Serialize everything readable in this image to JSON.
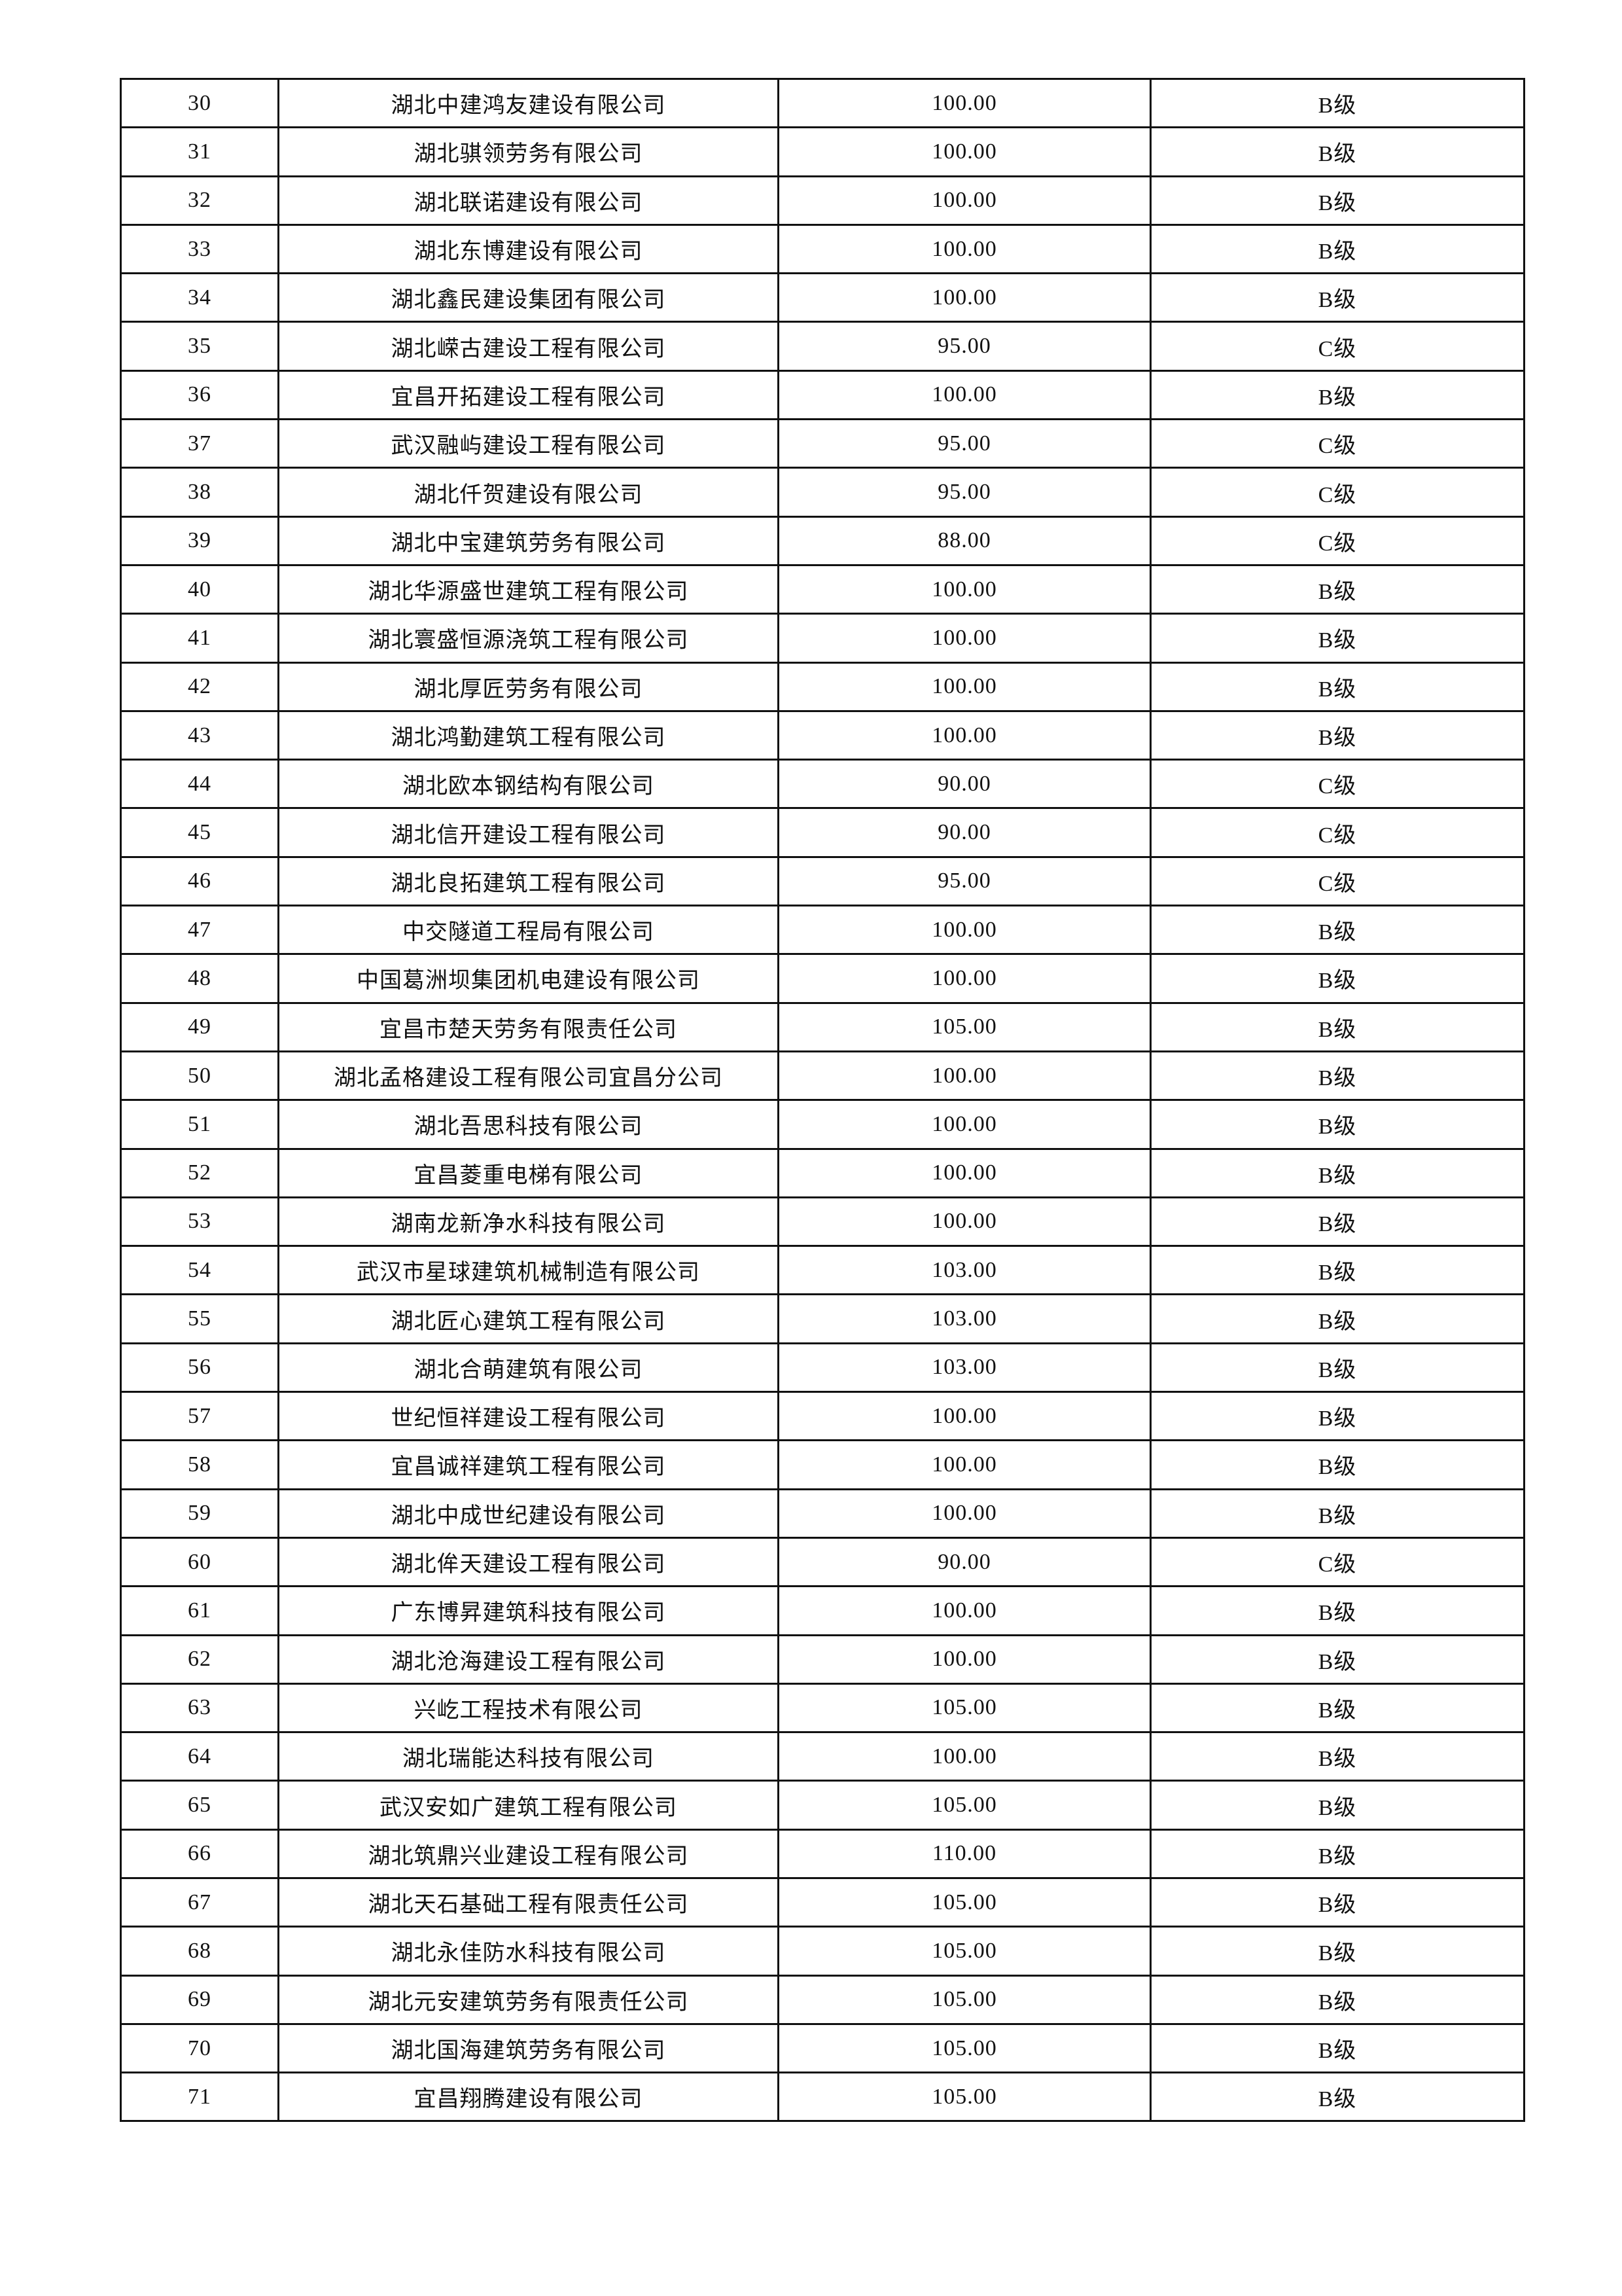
{
  "rows": [
    {
      "no": "30",
      "name": "湖北中建鸿友建设有限公司",
      "score": "100.00",
      "grade": "B级"
    },
    {
      "no": "31",
      "name": "湖北骐领劳务有限公司",
      "score": "100.00",
      "grade": "B级"
    },
    {
      "no": "32",
      "name": "湖北联诺建设有限公司",
      "score": "100.00",
      "grade": "B级"
    },
    {
      "no": "33",
      "name": "湖北东博建设有限公司",
      "score": "100.00",
      "grade": "B级"
    },
    {
      "no": "34",
      "name": "湖北鑫民建设集团有限公司",
      "score": "100.00",
      "grade": "B级"
    },
    {
      "no": "35",
      "name": "湖北嵘古建设工程有限公司",
      "score": "95.00",
      "grade": "C级"
    },
    {
      "no": "36",
      "name": "宜昌开拓建设工程有限公司",
      "score": "100.00",
      "grade": "B级"
    },
    {
      "no": "37",
      "name": "武汉融屿建设工程有限公司",
      "score": "95.00",
      "grade": "C级"
    },
    {
      "no": "38",
      "name": "湖北仟贺建设有限公司",
      "score": "95.00",
      "grade": "C级"
    },
    {
      "no": "39",
      "name": "湖北中宝建筑劳务有限公司",
      "score": "88.00",
      "grade": "C级"
    },
    {
      "no": "40",
      "name": "湖北华源盛世建筑工程有限公司",
      "score": "100.00",
      "grade": "B级"
    },
    {
      "no": "41",
      "name": "湖北寰盛恒源浇筑工程有限公司",
      "score": "100.00",
      "grade": "B级"
    },
    {
      "no": "42",
      "name": "湖北厚匠劳务有限公司",
      "score": "100.00",
      "grade": "B级"
    },
    {
      "no": "43",
      "name": "湖北鸿勤建筑工程有限公司",
      "score": "100.00",
      "grade": "B级"
    },
    {
      "no": "44",
      "name": "湖北欧本钢结构有限公司",
      "score": "90.00",
      "grade": "C级"
    },
    {
      "no": "45",
      "name": "湖北信开建设工程有限公司",
      "score": "90.00",
      "grade": "C级"
    },
    {
      "no": "46",
      "name": "湖北良拓建筑工程有限公司",
      "score": "95.00",
      "grade": "C级"
    },
    {
      "no": "47",
      "name": "中交隧道工程局有限公司",
      "score": "100.00",
      "grade": "B级"
    },
    {
      "no": "48",
      "name": "中国葛洲坝集团机电建设有限公司",
      "score": "100.00",
      "grade": "B级"
    },
    {
      "no": "49",
      "name": "宜昌市楚天劳务有限责任公司",
      "score": "105.00",
      "grade": "B级"
    },
    {
      "no": "50",
      "name": "湖北孟格建设工程有限公司宜昌分公司",
      "score": "100.00",
      "grade": "B级"
    },
    {
      "no": "51",
      "name": "湖北吾思科技有限公司",
      "score": "100.00",
      "grade": "B级"
    },
    {
      "no": "52",
      "name": "宜昌菱重电梯有限公司",
      "score": "100.00",
      "grade": "B级"
    },
    {
      "no": "53",
      "name": "湖南龙新净水科技有限公司",
      "score": "100.00",
      "grade": "B级"
    },
    {
      "no": "54",
      "name": "武汉市星球建筑机械制造有限公司",
      "score": "103.00",
      "grade": "B级"
    },
    {
      "no": "55",
      "name": "湖北匠心建筑工程有限公司",
      "score": "103.00",
      "grade": "B级"
    },
    {
      "no": "56",
      "name": "湖北合萌建筑有限公司",
      "score": "103.00",
      "grade": "B级"
    },
    {
      "no": "57",
      "name": "世纪恒祥建设工程有限公司",
      "score": "100.00",
      "grade": "B级"
    },
    {
      "no": "58",
      "name": "宜昌诚祥建筑工程有限公司",
      "score": "100.00",
      "grade": "B级"
    },
    {
      "no": "59",
      "name": "湖北中成世纪建设有限公司",
      "score": "100.00",
      "grade": "B级"
    },
    {
      "no": "60",
      "name": "湖北侔天建设工程有限公司",
      "score": "90.00",
      "grade": "C级"
    },
    {
      "no": "61",
      "name": "广东博昇建筑科技有限公司",
      "score": "100.00",
      "grade": "B级"
    },
    {
      "no": "62",
      "name": "湖北沧海建设工程有限公司",
      "score": "100.00",
      "grade": "B级"
    },
    {
      "no": "63",
      "name": "兴屹工程技术有限公司",
      "score": "105.00",
      "grade": "B级"
    },
    {
      "no": "64",
      "name": "湖北瑞能达科技有限公司",
      "score": "100.00",
      "grade": "B级"
    },
    {
      "no": "65",
      "name": "武汉安如广建筑工程有限公司",
      "score": "105.00",
      "grade": "B级"
    },
    {
      "no": "66",
      "name": "湖北筑鼎兴业建设工程有限公司",
      "score": "110.00",
      "grade": "B级"
    },
    {
      "no": "67",
      "name": "湖北天石基础工程有限责任公司",
      "score": "105.00",
      "grade": "B级"
    },
    {
      "no": "68",
      "name": "湖北永佳防水科技有限公司",
      "score": "105.00",
      "grade": "B级"
    },
    {
      "no": "69",
      "name": "湖北元安建筑劳务有限责任公司",
      "score": "105.00",
      "grade": "B级"
    },
    {
      "no": "70",
      "name": "湖北国海建筑劳务有限公司",
      "score": "105.00",
      "grade": "B级"
    },
    {
      "no": "71",
      "name": "宜昌翔腾建设有限公司",
      "score": "105.00",
      "grade": "B级"
    }
  ]
}
